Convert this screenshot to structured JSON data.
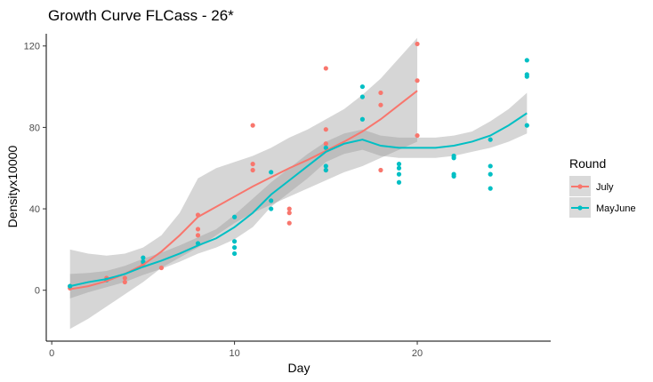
{
  "chart_data": {
    "type": "scatter",
    "title": "Growth Curve FLCass - 26*",
    "xlabel": "Day",
    "ylabel": "Densityx10000",
    "xlim": [
      -0.3,
      27.3
    ],
    "ylim": [
      -25,
      126
    ],
    "x_ticks": [
      0,
      10,
      20
    ],
    "y_ticks": [
      0,
      40,
      80,
      120
    ],
    "grid": false,
    "legend": {
      "title": "Round",
      "position": "right"
    },
    "series": [
      {
        "name": "July",
        "color": "#F8766D",
        "points": [
          [
            1,
            1
          ],
          [
            1,
            2
          ],
          [
            3,
            6
          ],
          [
            4,
            4
          ],
          [
            4,
            6
          ],
          [
            5,
            13
          ],
          [
            6,
            11
          ],
          [
            8,
            27
          ],
          [
            8,
            30
          ],
          [
            8,
            37
          ],
          [
            11,
            59
          ],
          [
            11,
            62
          ],
          [
            11,
            81
          ],
          [
            13,
            33
          ],
          [
            13,
            38
          ],
          [
            13,
            40
          ],
          [
            15,
            59
          ],
          [
            15,
            72
          ],
          [
            15,
            79
          ],
          [
            15,
            109
          ],
          [
            18,
            59
          ],
          [
            18,
            91
          ],
          [
            18,
            97
          ],
          [
            20,
            76
          ],
          [
            20,
            103
          ],
          [
            20,
            121
          ]
        ],
        "smooth": [
          [
            1,
            0.5
          ],
          [
            2,
            2
          ],
          [
            3,
            4.5
          ],
          [
            4,
            8
          ],
          [
            5,
            12.5
          ],
          [
            6,
            19
          ],
          [
            7,
            27
          ],
          [
            8,
            36
          ],
          [
            9,
            41
          ],
          [
            10,
            46
          ],
          [
            11,
            51
          ],
          [
            12,
            55.5
          ],
          [
            13,
            60
          ],
          [
            14,
            64
          ],
          [
            15,
            68.5
          ],
          [
            16,
            73
          ],
          [
            17,
            78
          ],
          [
            18,
            84
          ],
          [
            19,
            91
          ],
          [
            20,
            98
          ]
        ],
        "band_upper": [
          [
            1,
            20
          ],
          [
            2,
            18
          ],
          [
            3,
            17
          ],
          [
            4,
            18
          ],
          [
            5,
            21
          ],
          [
            6,
            27
          ],
          [
            7,
            38
          ],
          [
            8,
            55
          ],
          [
            9,
            60
          ],
          [
            10,
            63
          ],
          [
            11,
            66
          ],
          [
            12,
            70
          ],
          [
            13,
            75
          ],
          [
            14,
            79
          ],
          [
            15,
            84
          ],
          [
            16,
            89
          ],
          [
            17,
            96
          ],
          [
            18,
            104
          ],
          [
            19,
            114
          ],
          [
            20,
            124
          ]
        ],
        "band_lower": [
          [
            1,
            -19
          ],
          [
            2,
            -14
          ],
          [
            3,
            -8
          ],
          [
            4,
            -2
          ],
          [
            5,
            4
          ],
          [
            6,
            11
          ],
          [
            7,
            16
          ],
          [
            8,
            21
          ],
          [
            9,
            27
          ],
          [
            10,
            33
          ],
          [
            11,
            38
          ],
          [
            12,
            42
          ],
          [
            13,
            46
          ],
          [
            14,
            50
          ],
          [
            15,
            54
          ],
          [
            16,
            58
          ],
          [
            17,
            61
          ],
          [
            18,
            65
          ],
          [
            19,
            69
          ],
          [
            20,
            73
          ]
        ]
      },
      {
        "name": "MayJune",
        "color": "#00BFC4",
        "points": [
          [
            1,
            2
          ],
          [
            3,
            5
          ],
          [
            5,
            14
          ],
          [
            5,
            16
          ],
          [
            8,
            23
          ],
          [
            10,
            18
          ],
          [
            10,
            21
          ],
          [
            10,
            24
          ],
          [
            10,
            36
          ],
          [
            12,
            40
          ],
          [
            12,
            44
          ],
          [
            12,
            58
          ],
          [
            15,
            59
          ],
          [
            15,
            61
          ],
          [
            15,
            70
          ],
          [
            17,
            84
          ],
          [
            17,
            95
          ],
          [
            17,
            100
          ],
          [
            19,
            53
          ],
          [
            19,
            57
          ],
          [
            19,
            60
          ],
          [
            19,
            62
          ],
          [
            22,
            56
          ],
          [
            22,
            57
          ],
          [
            22,
            65
          ],
          [
            22,
            66
          ],
          [
            24,
            50
          ],
          [
            24,
            57
          ],
          [
            24,
            61
          ],
          [
            24,
            74
          ],
          [
            26,
            81
          ],
          [
            26,
            105
          ],
          [
            26,
            106
          ],
          [
            26,
            113
          ]
        ],
        "smooth": [
          [
            1,
            2
          ],
          [
            2,
            4
          ],
          [
            3,
            5.5
          ],
          [
            4,
            8
          ],
          [
            5,
            11.5
          ],
          [
            6,
            14.5
          ],
          [
            7,
            18
          ],
          [
            8,
            22
          ],
          [
            9,
            25.5
          ],
          [
            10,
            31
          ],
          [
            11,
            38
          ],
          [
            12,
            47
          ],
          [
            13,
            54
          ],
          [
            14,
            61
          ],
          [
            15,
            68
          ],
          [
            16,
            72
          ],
          [
            17,
            74
          ],
          [
            18,
            71
          ],
          [
            19,
            70
          ],
          [
            20,
            70
          ],
          [
            21,
            70
          ],
          [
            22,
            71
          ],
          [
            23,
            73
          ],
          [
            24,
            76
          ],
          [
            25,
            81
          ],
          [
            26,
            87
          ]
        ],
        "band_upper": [
          [
            1,
            8
          ],
          [
            2,
            8.5
          ],
          [
            3,
            9.5
          ],
          [
            4,
            12
          ],
          [
            5,
            15.5
          ],
          [
            6,
            18.5
          ],
          [
            7,
            22
          ],
          [
            8,
            26
          ],
          [
            9,
            30
          ],
          [
            10,
            37
          ],
          [
            11,
            45
          ],
          [
            12,
            53
          ],
          [
            13,
            60
          ],
          [
            14,
            67
          ],
          [
            15,
            73
          ],
          [
            16,
            77
          ],
          [
            17,
            79
          ],
          [
            18,
            76
          ],
          [
            19,
            75
          ],
          [
            20,
            75
          ],
          [
            21,
            75
          ],
          [
            22,
            76
          ],
          [
            23,
            78
          ],
          [
            24,
            83
          ],
          [
            25,
            89
          ],
          [
            26,
            97
          ]
        ],
        "band_lower": [
          [
            1,
            -4
          ],
          [
            2,
            -1
          ],
          [
            3,
            1.5
          ],
          [
            4,
            4
          ],
          [
            5,
            7.5
          ],
          [
            6,
            10.5
          ],
          [
            7,
            14
          ],
          [
            8,
            18
          ],
          [
            9,
            21
          ],
          [
            10,
            25
          ],
          [
            11,
            31
          ],
          [
            12,
            41
          ],
          [
            13,
            48
          ],
          [
            14,
            55
          ],
          [
            15,
            63
          ],
          [
            16,
            67
          ],
          [
            17,
            69
          ],
          [
            18,
            66
          ],
          [
            19,
            65
          ],
          [
            20,
            65
          ],
          [
            21,
            65
          ],
          [
            22,
            66
          ],
          [
            23,
            68
          ],
          [
            24,
            70
          ],
          [
            25,
            73
          ],
          [
            26,
            77
          ]
        ]
      }
    ],
    "band_color": "#999999"
  }
}
